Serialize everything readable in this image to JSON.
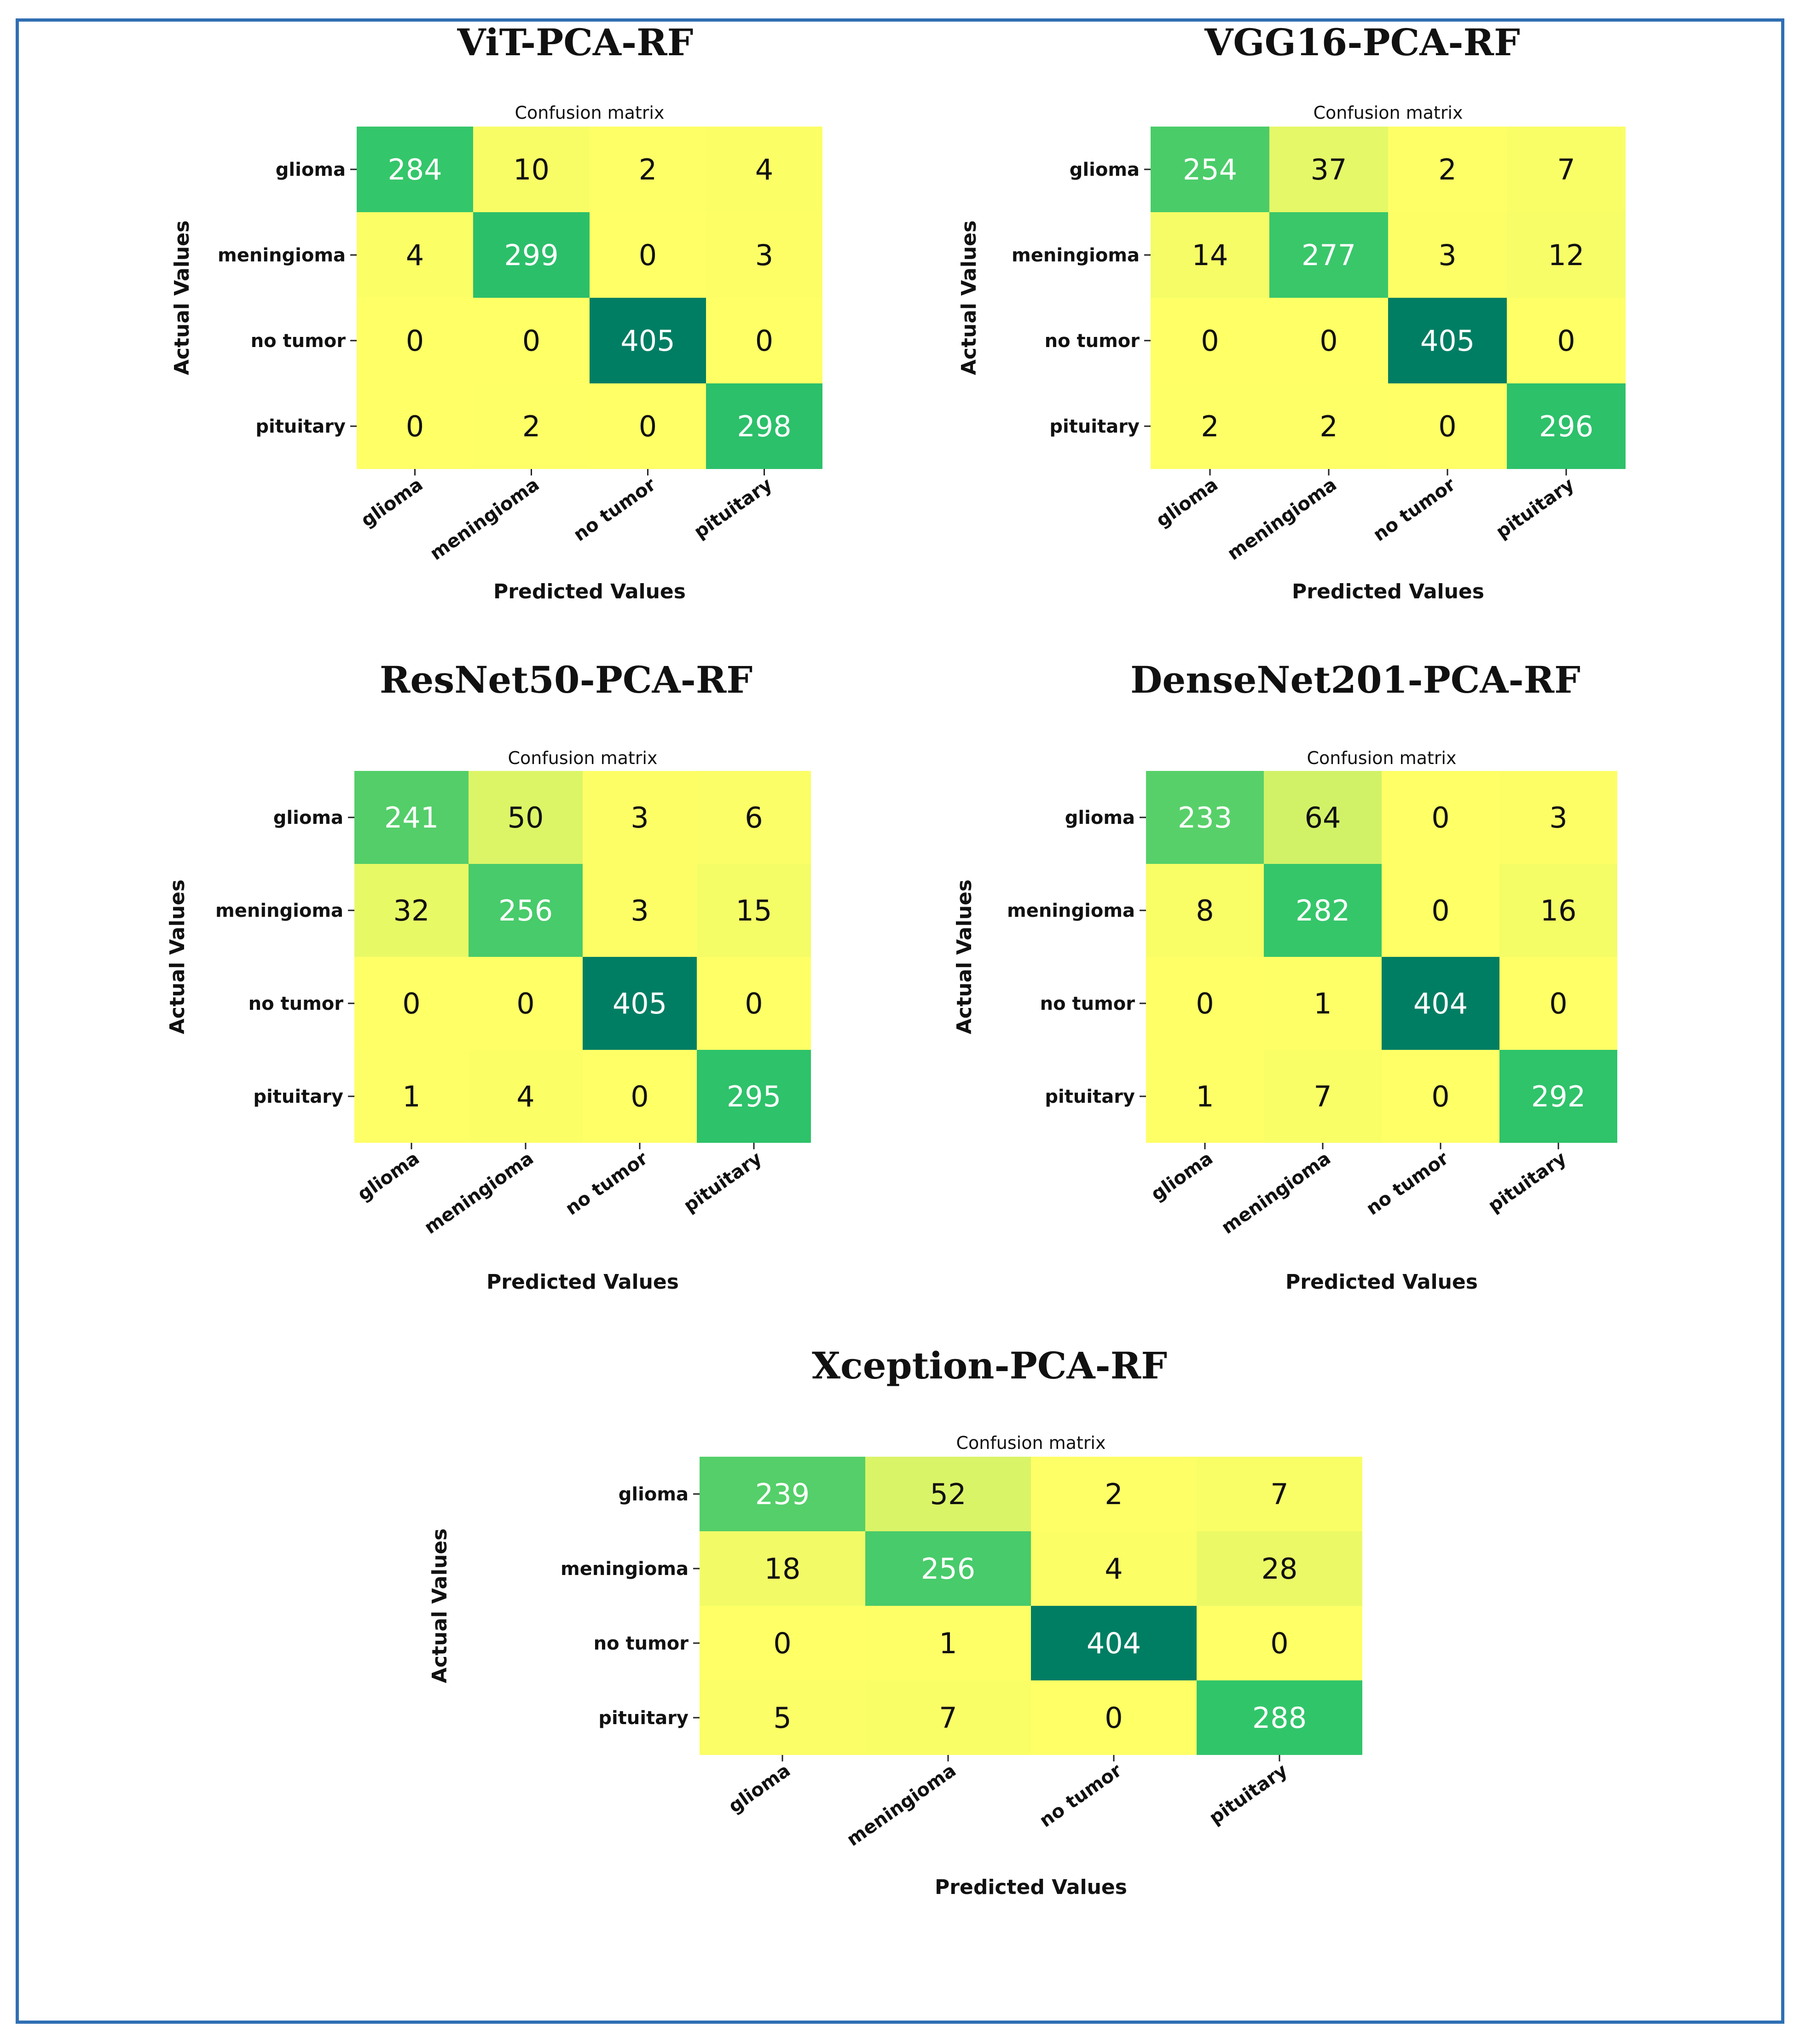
{
  "figure": {
    "border_color": "#2f6fb3"
  },
  "colors": {
    "low": "#ffff66",
    "mid": "#2fc46a",
    "high": "#007e63"
  },
  "chart_data": [
    {
      "type": "heatmap",
      "title": "ViT-PCA-RF",
      "subtitle": "Confusion matrix",
      "xlabel": "Predicted Values",
      "ylabel": "Actual Values",
      "categories": [
        "glioma",
        "meningioma",
        "no tumor",
        "pituitary"
      ],
      "matrix": [
        [
          284,
          10,
          2,
          4
        ],
        [
          4,
          299,
          0,
          3
        ],
        [
          0,
          0,
          405,
          0
        ],
        [
          0,
          2,
          0,
          298
        ]
      ]
    },
    {
      "type": "heatmap",
      "title": "VGG16-PCA-RF",
      "subtitle": "Confusion matrix",
      "xlabel": "Predicted Values",
      "ylabel": "Actual Values",
      "categories": [
        "glioma",
        "meningioma",
        "no tumor",
        "pituitary"
      ],
      "matrix": [
        [
          254,
          37,
          2,
          7
        ],
        [
          14,
          277,
          3,
          12
        ],
        [
          0,
          0,
          405,
          0
        ],
        [
          2,
          2,
          0,
          296
        ]
      ]
    },
    {
      "type": "heatmap",
      "title": "ResNet50-PCA-RF",
      "subtitle": "Confusion matrix",
      "xlabel": "Predicted Values",
      "ylabel": "Actual Values",
      "categories": [
        "glioma",
        "meningioma",
        "no tumor",
        "pituitary"
      ],
      "matrix": [
        [
          241,
          50,
          3,
          6
        ],
        [
          32,
          256,
          3,
          15
        ],
        [
          0,
          0,
          405,
          0
        ],
        [
          1,
          4,
          0,
          295
        ]
      ]
    },
    {
      "type": "heatmap",
      "title": "DenseNet201-PCA-RF",
      "subtitle": "Confusion matrix",
      "xlabel": "Predicted Values",
      "ylabel": "Actual Values",
      "categories": [
        "glioma",
        "meningioma",
        "no tumor",
        "pituitary"
      ],
      "matrix": [
        [
          233,
          64,
          0,
          3
        ],
        [
          8,
          282,
          0,
          16
        ],
        [
          0,
          1,
          404,
          0
        ],
        [
          1,
          7,
          0,
          292
        ]
      ]
    },
    {
      "type": "heatmap",
      "title": "Xception-PCA-RF",
      "subtitle": "Confusion matrix",
      "xlabel": "Predicted Values",
      "ylabel": "Actual Values",
      "categories": [
        "glioma",
        "meningioma",
        "no tumor",
        "pituitary"
      ],
      "matrix": [
        [
          239,
          52,
          2,
          7
        ],
        [
          18,
          256,
          4,
          28
        ],
        [
          0,
          1,
          404,
          0
        ],
        [
          5,
          7,
          0,
          288
        ]
      ]
    }
  ]
}
